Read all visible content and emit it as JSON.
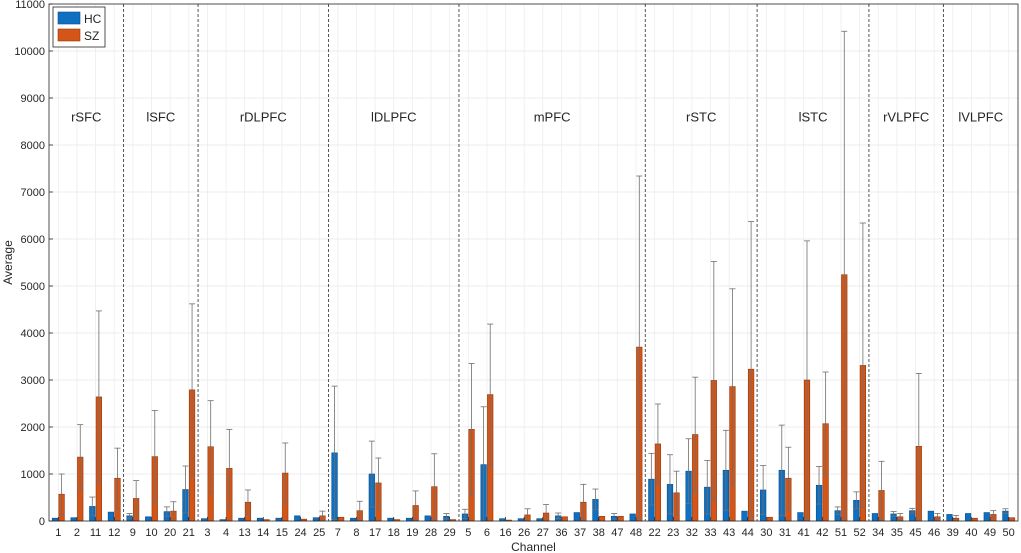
{
  "chart_data": {
    "type": "bar",
    "xlabel": "Channel",
    "ylabel": "Average",
    "ylim": [
      0,
      11000
    ],
    "yticks": [
      0,
      1000,
      2000,
      3000,
      4000,
      5000,
      6000,
      7000,
      8000,
      9000,
      10000,
      11000
    ],
    "grid": true,
    "legend_position": "top-left",
    "colors": {
      "HC": "#0f6fc0",
      "SZ": "#d35518",
      "HC_edge": "#0a4f8c",
      "SZ_edge": "#96390c"
    },
    "categories": [
      "1",
      "2",
      "11",
      "12",
      "9",
      "10",
      "20",
      "21",
      "3",
      "4",
      "13",
      "14",
      "15",
      "24",
      "25",
      "7",
      "8",
      "17",
      "18",
      "19",
      "28",
      "29",
      "5",
      "6",
      "16",
      "26",
      "27",
      "36",
      "37",
      "38",
      "47",
      "48",
      "22",
      "23",
      "32",
      "33",
      "43",
      "44",
      "30",
      "31",
      "41",
      "42",
      "51",
      "52",
      "34",
      "35",
      "45",
      "46",
      "39",
      "40",
      "49",
      "50"
    ],
    "regions": [
      {
        "label": "rSFC",
        "start": 0,
        "end": 3
      },
      {
        "label": "lSFC",
        "start": 4,
        "end": 7
      },
      {
        "label": "rDLPFC",
        "start": 8,
        "end": 14
      },
      {
        "label": "lDLPFC",
        "start": 15,
        "end": 21
      },
      {
        "label": "mPFC",
        "start": 22,
        "end": 31
      },
      {
        "label": "rSTC",
        "start": 32,
        "end": 37
      },
      {
        "label": "lSTC",
        "start": 38,
        "end": 43
      },
      {
        "label": "rVLPFC",
        "start": 44,
        "end": 47
      },
      {
        "label": "lVLPFC",
        "start": 48,
        "end": 51
      }
    ],
    "series": [
      {
        "name": "HC",
        "values": [
          60,
          70,
          310,
          190,
          110,
          90,
          200,
          670,
          50,
          30,
          60,
          60,
          60,
          110,
          70,
          1450,
          60,
          1000,
          60,
          60,
          110,
          100,
          150,
          1200,
          50,
          50,
          50,
          110,
          180,
          460,
          100,
          150,
          890,
          780,
          1060,
          720,
          1080,
          210,
          660,
          1080,
          180,
          760,
          220,
          440,
          160,
          150,
          220,
          210,
          140,
          160,
          180,
          210
        ],
        "error": [
          0,
          0,
          200,
          0,
          50,
          0,
          100,
          500,
          0,
          0,
          0,
          0,
          0,
          0,
          0,
          1420,
          0,
          700,
          0,
          0,
          0,
          60,
          100,
          1230,
          0,
          0,
          0,
          60,
          0,
          220,
          60,
          0,
          550,
          630,
          690,
          570,
          850,
          0,
          520,
          960,
          0,
          400,
          80,
          180,
          0,
          50,
          50,
          0,
          0,
          0,
          0,
          50
        ]
      },
      {
        "name": "SZ",
        "values": [
          570,
          1360,
          2640,
          910,
          480,
          1370,
          210,
          2790,
          1580,
          1120,
          400,
          30,
          1020,
          40,
          110,
          80,
          220,
          810,
          30,
          330,
          730,
          30,
          1950,
          2690,
          20,
          130,
          170,
          90,
          400,
          100,
          100,
          3700,
          1640,
          600,
          1840,
          2990,
          2860,
          3230,
          80,
          910,
          3000,
          2070,
          5240,
          3310,
          650,
          90,
          1590,
          90,
          60,
          60,
          140,
          70
        ],
        "error": [
          430,
          690,
          1830,
          640,
          380,
          980,
          200,
          1830,
          980,
          830,
          260,
          0,
          640,
          0,
          100,
          0,
          200,
          530,
          0,
          310,
          700,
          0,
          1400,
          1500,
          0,
          130,
          180,
          0,
          380,
          0,
          0,
          3640,
          850,
          460,
          1220,
          2530,
          2080,
          3140,
          0,
          660,
          2960,
          1100,
          5180,
          3030,
          620,
          70,
          1550,
          70,
          60,
          0,
          80,
          0
        ]
      }
    ]
  }
}
